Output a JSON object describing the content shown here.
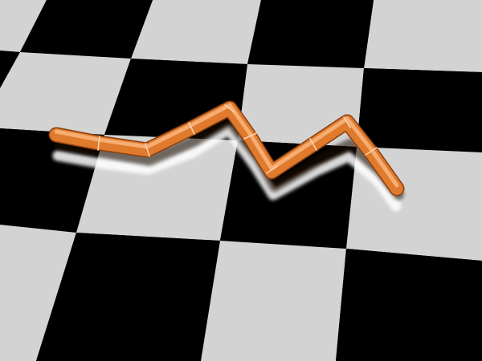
{
  "scene": {
    "floor": {
      "pattern": "checkerboard",
      "light_color": "#d3d3d3",
      "dark_color": "#000000"
    },
    "robot": {
      "kind": "segmented-snake",
      "body_color": "#e07a2c",
      "highlight_color": "#f7b27a",
      "shadow_color": "#8a3f10",
      "reflection_color": "#ffffff",
      "segment_count": 12
    }
  }
}
